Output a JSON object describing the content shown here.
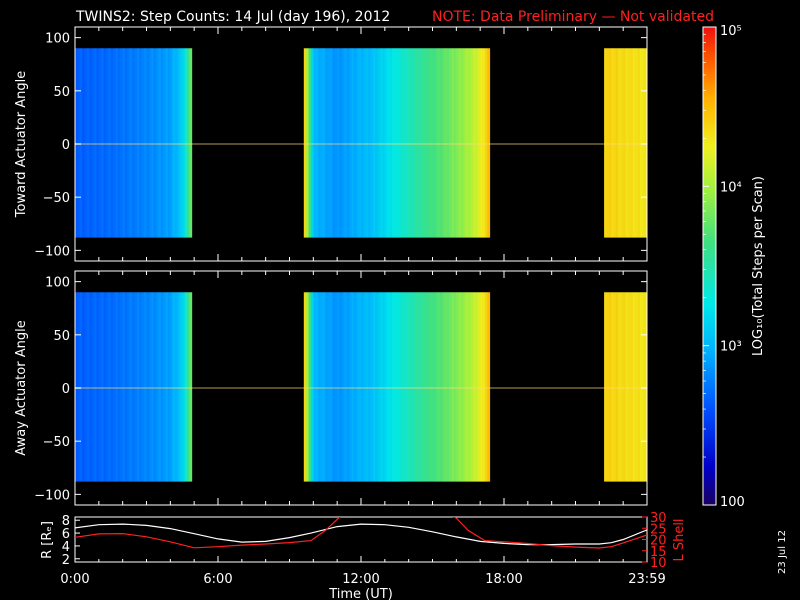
{
  "title": {
    "main": "TWINS2: Step Counts: 14 Jul (day 196), 2012",
    "note": "NOTE: Data Preliminary — Not validated"
  },
  "colors": {
    "note": "#ff2020",
    "background": "#000000",
    "r_line": "#ffffff",
    "lshell_line": "#ff2020"
  },
  "chart_data": {
    "type": "heatmap",
    "x_unit": "hours UT",
    "xlim": [
      0,
      24
    ],
    "xticks": [
      {
        "value": 0,
        "label": "0:00"
      },
      {
        "value": 6,
        "label": "6:00"
      },
      {
        "value": 12,
        "label": "12:00"
      },
      {
        "value": 18,
        "label": "18:00"
      },
      {
        "value": 24,
        "label": "23:59"
      }
    ],
    "xlabel": "Time (UT)",
    "data_segments_hours": [
      [
        0.0,
        4.9
      ],
      [
        9.6,
        17.4
      ],
      [
        22.2,
        24.0
      ]
    ],
    "panels": [
      {
        "name": "toward",
        "ylabel": "Toward Actuator Angle",
        "ylim": [
          -110,
          110
        ],
        "yticks": [
          100,
          50,
          0,
          -50,
          -100
        ],
        "angle_range": [
          -88,
          90
        ]
      },
      {
        "name": "away",
        "ylabel": "Away Actuator Angle",
        "ylim": [
          -110,
          110
        ],
        "yticks": [
          100,
          50,
          0,
          -50,
          -100
        ],
        "angle_range": [
          -88,
          90
        ]
      }
    ],
    "colorbar": {
      "label": "LOG₁₀(Total Steps per Scan)",
      "min": 100,
      "max": 100000,
      "ticks": [
        {
          "value": 100,
          "label": "100"
        },
        {
          "value": 1000,
          "label": "10³"
        },
        {
          "value": 10000,
          "label": "10⁴"
        },
        {
          "value": 100000,
          "label": "10⁵"
        }
      ]
    },
    "column_profile": [
      {
        "t": 0.0,
        "log": 2.65
      },
      {
        "t": 1.5,
        "log": 2.7
      },
      {
        "t": 3.0,
        "log": 2.8
      },
      {
        "t": 4.0,
        "log": 2.9
      },
      {
        "t": 4.5,
        "log": 3.1
      },
      {
        "t": 4.9,
        "log": 3.9
      },
      {
        "t": 9.6,
        "log": 4.6
      },
      {
        "t": 10.0,
        "log": 3.0
      },
      {
        "t": 11.0,
        "log": 2.85
      },
      {
        "t": 12.5,
        "log": 3.05
      },
      {
        "t": 13.5,
        "log": 3.3
      },
      {
        "t": 14.5,
        "log": 3.55
      },
      {
        "t": 15.5,
        "log": 3.75
      },
      {
        "t": 16.5,
        "log": 4.0
      },
      {
        "t": 17.0,
        "log": 4.2
      },
      {
        "t": 17.4,
        "log": 4.5
      },
      {
        "t": 22.2,
        "log": 4.4
      },
      {
        "t": 23.0,
        "log": 4.35
      },
      {
        "t": 24.0,
        "log": 4.3
      }
    ],
    "orbit": {
      "r_label": "R [Rₑ]",
      "r_ylim": [
        1.5,
        8.5
      ],
      "r_yticks": [
        2,
        4,
        6,
        8
      ],
      "lshell_label": "L Shell",
      "lshell_ylim": [
        10,
        30
      ],
      "lshell_yticks": [
        10,
        15,
        20,
        25,
        30
      ],
      "r_series": {
        "t": [
          0,
          1,
          2,
          3,
          4,
          5,
          6,
          7,
          8,
          9,
          9.9,
          11,
          12,
          13,
          14,
          15,
          16,
          17,
          18,
          19,
          20,
          21,
          22,
          22.5,
          23,
          24
        ],
        "values": [
          6.8,
          7.3,
          7.4,
          7.2,
          6.7,
          5.9,
          5.1,
          4.6,
          4.7,
          5.3,
          6.0,
          7.0,
          7.4,
          7.3,
          6.9,
          6.2,
          5.4,
          4.7,
          4.4,
          4.2,
          4.2,
          4.3,
          4.3,
          4.5,
          5.0,
          6.5
        ]
      },
      "lshell_series": {
        "t": [
          0,
          1,
          2,
          3,
          4,
          5,
          6,
          7,
          8,
          9,
          9.9,
          10.5,
          11.0,
          11.2
        ],
        "values": [
          21,
          22.5,
          22.6,
          21.2,
          19.0,
          16.3,
          16.8,
          17.5,
          18.0,
          18.6,
          19.5,
          24.0,
          29.0,
          31.0
        ]
      },
      "lshell_series_2": {
        "t": [
          15.7,
          16.0,
          16.5,
          17.2,
          18,
          19,
          20,
          21,
          22,
          22.5,
          23,
          24
        ],
        "values": [
          31.0,
          29.5,
          24.0,
          19.5,
          19.0,
          18.2,
          17.3,
          16.6,
          16.2,
          16.8,
          18.5,
          22.0
        ]
      }
    }
  },
  "date_stamp": "23 Jul 12"
}
